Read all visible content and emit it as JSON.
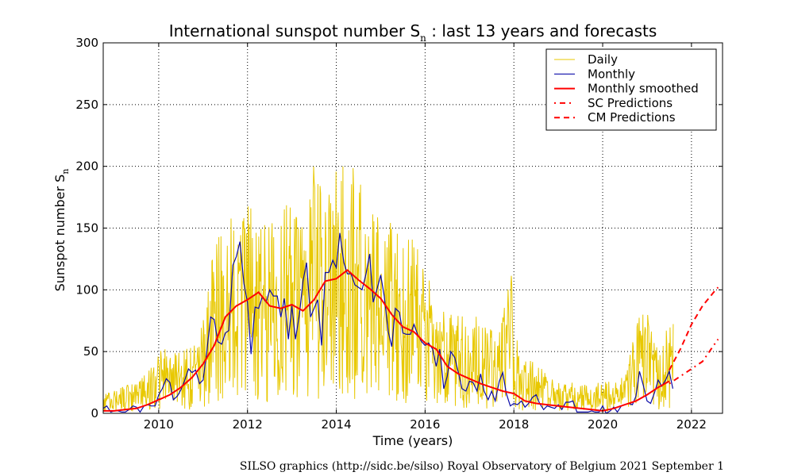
{
  "chart_data": {
    "type": "line",
    "title_main": "International sunspot number S",
    "title_sub": "n",
    "title_rest": " : last 13 years and forecasts",
    "xlabel": "Time (years)",
    "ylabel_main": "Sunspot number S",
    "ylabel_sub": "n",
    "xlim": [
      2008.75,
      2022.7
    ],
    "ylim": [
      0,
      300
    ],
    "xticks": [
      2010,
      2012,
      2014,
      2016,
      2018,
      2020,
      2022
    ],
    "yticks": [
      0,
      50,
      100,
      150,
      200,
      250,
      300
    ],
    "grid": true,
    "legend_placement": "top-right",
    "colors": {
      "daily": "#e8c800",
      "monthly": "#0a0aa8",
      "smoothed": "#ff0000",
      "sc": "#ff0000",
      "cm": "#ff0000"
    },
    "series": [
      {
        "name": "Daily",
        "style": "thin-solid",
        "color": "#e8c800",
        "envelope": [
          [
            2008.75,
            15
          ],
          [
            2009.0,
            20
          ],
          [
            2009.5,
            25
          ],
          [
            2009.9,
            40
          ],
          [
            2010.1,
            55
          ],
          [
            2010.5,
            50
          ],
          [
            2010.9,
            60
          ],
          [
            2011.2,
            140
          ],
          [
            2011.5,
            150
          ],
          [
            2011.8,
            190
          ],
          [
            2011.95,
            200
          ],
          [
            2012.2,
            160
          ],
          [
            2012.5,
            160
          ],
          [
            2012.8,
            175
          ],
          [
            2013.0,
            165
          ],
          [
            2013.3,
            160
          ],
          [
            2013.5,
            205
          ],
          [
            2013.8,
            175
          ],
          [
            2014.0,
            200
          ],
          [
            2014.2,
            220
          ],
          [
            2014.4,
            200
          ],
          [
            2014.7,
            190
          ],
          [
            2015.0,
            175
          ],
          [
            2015.3,
            160
          ],
          [
            2015.6,
            150
          ],
          [
            2015.9,
            130
          ],
          [
            2016.2,
            100
          ],
          [
            2016.6,
            80
          ],
          [
            2016.9,
            80
          ],
          [
            2017.2,
            80
          ],
          [
            2017.7,
            75
          ],
          [
            2017.95,
            120
          ],
          [
            2018.1,
            50
          ],
          [
            2018.5,
            40
          ],
          [
            2019.0,
            25
          ],
          [
            2019.5,
            25
          ],
          [
            2020.0,
            25
          ],
          [
            2020.5,
            30
          ],
          [
            2020.9,
            95
          ],
          [
            2021.2,
            55
          ],
          [
            2021.4,
            70
          ],
          [
            2021.6,
            75
          ]
        ]
      },
      {
        "name": "Monthly",
        "style": "solid",
        "color": "#0a0aa8",
        "x": [
          2008.75,
          2008.83,
          2008.92,
          2009.0,
          2009.08,
          2009.17,
          2009.25,
          2009.33,
          2009.42,
          2009.5,
          2009.58,
          2009.67,
          2009.75,
          2009.83,
          2009.92,
          2010.0,
          2010.08,
          2010.17,
          2010.25,
          2010.33,
          2010.42,
          2010.5,
          2010.58,
          2010.67,
          2010.75,
          2010.83,
          2010.92,
          2011.0,
          2011.08,
          2011.17,
          2011.25,
          2011.33,
          2011.42,
          2011.5,
          2011.58,
          2011.67,
          2011.75,
          2011.83,
          2011.92,
          2012.0,
          2012.08,
          2012.17,
          2012.25,
          2012.33,
          2012.42,
          2012.5,
          2012.58,
          2012.67,
          2012.75,
          2012.83,
          2012.92,
          2013.0,
          2013.08,
          2013.17,
          2013.25,
          2013.33,
          2013.42,
          2013.5,
          2013.58,
          2013.67,
          2013.75,
          2013.83,
          2013.92,
          2014.0,
          2014.08,
          2014.17,
          2014.25,
          2014.33,
          2014.42,
          2014.5,
          2014.58,
          2014.67,
          2014.75,
          2014.83,
          2014.92,
          2015.0,
          2015.08,
          2015.17,
          2015.25,
          2015.33,
          2015.42,
          2015.5,
          2015.58,
          2015.67,
          2015.75,
          2015.83,
          2015.92,
          2016.0,
          2016.08,
          2016.17,
          2016.25,
          2016.33,
          2016.42,
          2016.5,
          2016.58,
          2016.67,
          2016.75,
          2016.83,
          2016.92,
          2017.0,
          2017.08,
          2017.17,
          2017.25,
          2017.33,
          2017.42,
          2017.5,
          2017.58,
          2017.67,
          2017.75,
          2017.83,
          2017.92,
          2018.0,
          2018.08,
          2018.17,
          2018.25,
          2018.33,
          2018.42,
          2018.5,
          2018.58,
          2018.67,
          2018.75,
          2018.83,
          2018.92,
          2019.0,
          2019.08,
          2019.17,
          2019.25,
          2019.33,
          2019.42,
          2019.5,
          2019.58,
          2019.67,
          2019.75,
          2019.83,
          2019.92,
          2020.0,
          2020.08,
          2020.17,
          2020.25,
          2020.33,
          2020.42,
          2020.5,
          2020.58,
          2020.67,
          2020.75,
          2020.83,
          2020.92,
          2021.0,
          2021.08,
          2021.17,
          2021.25,
          2021.33,
          2021.42,
          2021.5,
          2021.58
        ],
        "values": [
          4,
          6,
          1,
          2,
          2,
          1,
          1,
          3,
          6,
          5,
          1,
          6,
          7,
          6,
          6,
          15,
          20,
          28,
          25,
          11,
          14,
          19,
          26,
          36,
          33,
          35,
          24,
          27,
          49,
          78,
          76,
          58,
          56,
          65,
          67,
          120,
          127,
          139,
          105,
          90,
          48,
          86,
          85,
          94,
          90,
          100,
          95,
          95,
          78,
          93,
          60,
          87,
          60,
          80,
          107,
          122,
          78,
          85,
          92,
          55,
          114,
          114,
          124,
          118,
          146,
          122,
          113,
          113,
          104,
          102,
          100,
          113,
          129,
          90,
          101,
          112,
          95,
          66,
          54,
          85,
          82,
          65,
          64,
          64,
          72,
          64,
          58,
          55,
          57,
          52,
          38,
          52,
          20,
          30,
          50,
          45,
          33,
          20,
          18,
          26,
          25,
          18,
          32,
          18,
          11,
          18,
          10,
          26,
          33,
          16,
          6,
          8,
          7,
          10,
          5,
          8,
          13,
          15,
          8,
          3,
          6,
          5,
          4,
          7,
          3,
          9,
          9,
          10,
          1,
          1,
          1,
          1,
          2,
          1,
          1,
          6,
          0,
          2,
          5,
          1,
          6,
          7,
          8,
          7,
          14,
          34,
          22,
          10,
          8,
          17,
          27,
          22,
          27,
          34,
          20
        ]
      },
      {
        "name": "Monthly smoothed",
        "style": "thick-solid",
        "color": "#ff0000",
        "x": [
          2008.75,
          2009.0,
          2009.25,
          2009.5,
          2009.75,
          2010.0,
          2010.25,
          2010.5,
          2010.75,
          2011.0,
          2011.25,
          2011.5,
          2011.75,
          2012.0,
          2012.25,
          2012.5,
          2012.75,
          2013.0,
          2013.25,
          2013.5,
          2013.75,
          2014.0,
          2014.25,
          2014.5,
          2014.75,
          2015.0,
          2015.25,
          2015.5,
          2015.75,
          2016.0,
          2016.25,
          2016.5,
          2016.75,
          2017.0,
          2017.25,
          2017.5,
          2017.75,
          2018.0,
          2018.25,
          2018.5,
          2018.75,
          2019.0,
          2019.25,
          2019.5,
          2019.75,
          2020.0,
          2020.25,
          2020.5,
          2020.75,
          2021.0,
          2021.25,
          2021.5
        ],
        "values": [
          2,
          2,
          3,
          4,
          7,
          11,
          15,
          21,
          29,
          40,
          55,
          78,
          87,
          92,
          98,
          87,
          85,
          88,
          83,
          92,
          107,
          109,
          116,
          108,
          101,
          93,
          80,
          70,
          66,
          57,
          52,
          38,
          32,
          28,
          24,
          21,
          18,
          16,
          10,
          8,
          7,
          6,
          5,
          4,
          3,
          2,
          4,
          7,
          10,
          15,
          21,
          26
        ]
      },
      {
        "name": "SC Predictions",
        "style": "dash-dot",
        "color": "#ff0000",
        "x": [
          2021.5,
          2021.75,
          2022.0,
          2022.25,
          2022.5,
          2022.6
        ],
        "values": [
          24,
          30,
          36,
          42,
          55,
          60
        ]
      },
      {
        "name": "CM Predictions",
        "style": "dashed",
        "color": "#ff0000",
        "x": [
          2021.5,
          2021.75,
          2022.0,
          2022.25,
          2022.5,
          2022.6
        ],
        "values": [
          35,
          52,
          72,
          87,
          98,
          102
        ]
      }
    ],
    "footer": "SILSO graphics (http://sidc.be/silso)  Royal Observatory of Belgium  2021 September 1"
  }
}
